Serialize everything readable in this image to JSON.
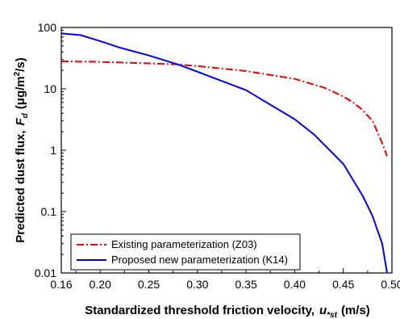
{
  "chart_data": {
    "type": "line",
    "xlabel": {
      "prefix": "Standardized threshold friction velocity,",
      "symbol": "u",
      "subscript": "*st",
      "unit": "(m/s)"
    },
    "ylabel": {
      "prefix": "Predicted dust flux,",
      "symbol": "F",
      "subscript": "d",
      "unit_before": "(μg/m",
      "unit_sup": "2",
      "unit_after": "/s)"
    },
    "xlim": [
      0.16,
      0.5
    ],
    "ylim": [
      0.01,
      100
    ],
    "yscale": "log",
    "xticks": [
      "0.16",
      "0.20",
      "0.25",
      "0.30",
      "0.35",
      "0.40",
      "0.45",
      "0.50"
    ],
    "yticks": [
      "0.01",
      "0.1",
      "1",
      "10",
      "100"
    ],
    "legend_position": "bottom-left",
    "series": [
      {
        "name": "Existing parameterization (Z03)",
        "color": "#ee0000",
        "style": "dash-dot",
        "x": [
          0.16,
          0.2,
          0.25,
          0.28,
          0.3,
          0.35,
          0.4,
          0.43,
          0.45,
          0.46,
          0.47,
          0.48,
          0.485,
          0.49,
          0.495
        ],
        "y": [
          28,
          27.5,
          26,
          25,
          23.5,
          19.5,
          14.5,
          10.5,
          7.5,
          6.0,
          4.5,
          3.0,
          2.0,
          1.3,
          0.8
        ]
      },
      {
        "name": "Proposed new parameterization (K14)",
        "color": "#0000ee",
        "style": "solid",
        "x": [
          0.16,
          0.18,
          0.2,
          0.22,
          0.25,
          0.28,
          0.3,
          0.35,
          0.4,
          0.42,
          0.45,
          0.47,
          0.48,
          0.49,
          0.495
        ],
        "y": [
          80,
          75,
          60,
          47,
          35,
          25,
          19,
          9.5,
          3.2,
          1.8,
          0.6,
          0.18,
          0.085,
          0.03,
          0.01
        ]
      }
    ]
  }
}
